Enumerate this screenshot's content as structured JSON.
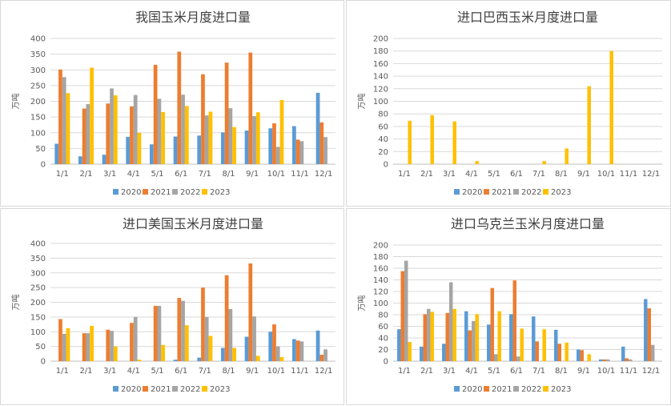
{
  "series_colors": [
    "#5b9bd5",
    "#ed7d31",
    "#a5a5a5",
    "#ffc000"
  ],
  "series_names": [
    "2020",
    "2021",
    "2022",
    "2023"
  ],
  "chart_data": [
    {
      "type": "bar",
      "title": "我国玉米月度进口量",
      "ylabel": "万吨",
      "categories": [
        "1/1",
        "2/1",
        "3/1",
        "4/1",
        "5/1",
        "6/1",
        "7/1",
        "8/1",
        "9/1",
        "10/1",
        "11/1",
        "12/1"
      ],
      "ylim": [
        0,
        400
      ],
      "yticks": [
        0,
        50,
        100,
        150,
        200,
        250,
        300,
        350,
        400
      ],
      "series": [
        {
          "name": "2020",
          "values": [
            65,
            25,
            30,
            87,
            63,
            88,
            91,
            101,
            107,
            114,
            121,
            227
          ]
        },
        {
          "name": "2021",
          "values": [
            301,
            177,
            193,
            184,
            316,
            358,
            286,
            323,
            355,
            130,
            78,
            133
          ]
        },
        {
          "name": "2022",
          "values": [
            277,
            191,
            241,
            220,
            208,
            221,
            155,
            178,
            153,
            55,
            73,
            86
          ]
        },
        {
          "name": "2023",
          "values": [
            226,
            307,
            219,
            100,
            166,
            185,
            167,
            118,
            165,
            204,
            null,
            null
          ]
        }
      ]
    },
    {
      "type": "bar",
      "title": "进口巴西玉米月度进口量",
      "ylabel": "万吨",
      "categories": [
        "1/1",
        "2/1",
        "3/1",
        "4/1",
        "5/1",
        "6/1",
        "7/1",
        "8/1",
        "9/1",
        "10/1",
        "11/1",
        "12/1"
      ],
      "ylim": [
        0,
        200
      ],
      "yticks": [
        0,
        20,
        40,
        60,
        80,
        100,
        120,
        140,
        160,
        180,
        200
      ],
      "series": [
        {
          "name": "2020",
          "values": [
            null,
            null,
            null,
            null,
            null,
            null,
            null,
            null,
            null,
            null,
            null,
            null
          ]
        },
        {
          "name": "2021",
          "values": [
            null,
            null,
            null,
            null,
            null,
            null,
            null,
            null,
            null,
            null,
            null,
            null
          ]
        },
        {
          "name": "2022",
          "values": [
            null,
            null,
            null,
            null,
            null,
            null,
            null,
            null,
            null,
            null,
            null,
            null
          ]
        },
        {
          "name": "2023",
          "values": [
            69,
            78,
            68,
            5,
            null,
            null,
            5,
            25,
            124,
            180,
            null,
            null
          ]
        }
      ]
    },
    {
      "type": "bar",
      "title": "进口美国玉米月度进口量",
      "ylabel": "万吨",
      "categories": [
        "1/1",
        "2/1",
        "3/1",
        "4/1",
        "5/1",
        "6/1",
        "7/1",
        "8/1",
        "9/1",
        "10/1",
        "11/1",
        "12/1"
      ],
      "ylim": [
        0,
        400
      ],
      "yticks": [
        0,
        50,
        100,
        150,
        200,
        250,
        300,
        350,
        400
      ],
      "series": [
        {
          "name": "2020",
          "values": [
            null,
            null,
            null,
            null,
            null,
            5,
            12,
            45,
            83,
            100,
            75,
            104
          ]
        },
        {
          "name": "2021",
          "values": [
            143,
            95,
            107,
            130,
            188,
            215,
            250,
            292,
            332,
            125,
            70,
            22
          ]
        },
        {
          "name": "2022",
          "values": [
            93,
            95,
            103,
            150,
            188,
            205,
            150,
            177,
            152,
            50,
            67,
            40
          ]
        },
        {
          "name": "2023",
          "values": [
            112,
            120,
            50,
            5,
            55,
            122,
            86,
            45,
            18,
            14,
            null,
            null
          ]
        }
      ]
    },
    {
      "type": "bar",
      "title": "进口乌克兰玉米月度进口量",
      "ylabel": "万吨",
      "categories": [
        "1/1",
        "2/1",
        "3/1",
        "4/1",
        "5/1",
        "6/1",
        "7/1",
        "8/1",
        "9/1",
        "10/1",
        "11/1",
        "12/1"
      ],
      "ylim": [
        0,
        200
      ],
      "yticks": [
        0,
        20,
        40,
        60,
        80,
        100,
        120,
        140,
        160,
        180,
        200
      ],
      "series": [
        {
          "name": "2020",
          "values": [
            55,
            25,
            30,
            86,
            63,
            81,
            77,
            54,
            20,
            3,
            25,
            107
          ]
        },
        {
          "name": "2021",
          "values": [
            155,
            81,
            83,
            53,
            126,
            139,
            34,
            30,
            19,
            3,
            5,
            91
          ]
        },
        {
          "name": "2022",
          "values": [
            173,
            90,
            136,
            69,
            12,
            8,
            null,
            null,
            null,
            3,
            3,
            28
          ]
        },
        {
          "name": "2023",
          "values": [
            33,
            85,
            90,
            81,
            86,
            56,
            55,
            32,
            12,
            null,
            null,
            null
          ]
        }
      ]
    }
  ]
}
